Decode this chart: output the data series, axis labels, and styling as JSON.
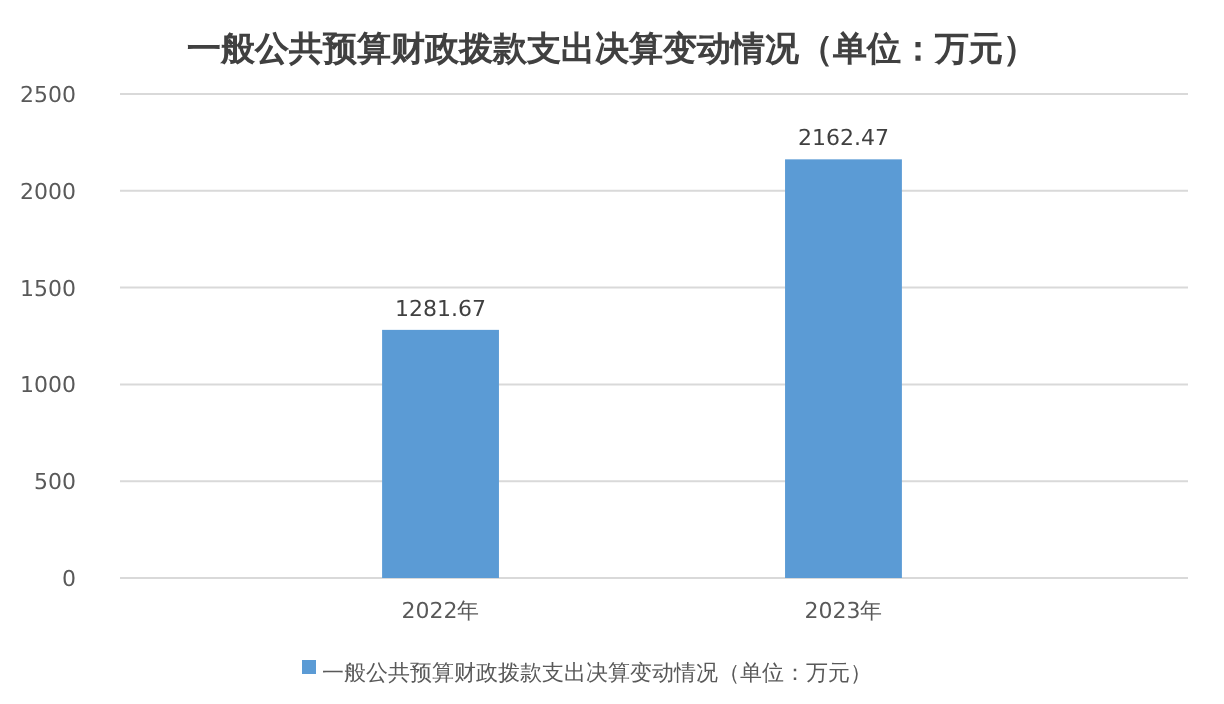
{
  "chart_data": {
    "type": "bar",
    "title": "一般公共预算财政拨款支出决算变动情况（单位：万元）",
    "categories": [
      "2022年",
      "2023年"
    ],
    "series": [
      {
        "name": "一般公共预算财政拨款支出决算变动情况（单位：万元）",
        "color": "#5b9bd5",
        "values": [
          1281.67,
          2162.47
        ]
      }
    ],
    "ylim": [
      0,
      2500
    ],
    "yticks": [
      0,
      500,
      1000,
      1500,
      2000,
      2500
    ],
    "grid": "y",
    "legend": "bottom",
    "data_labels": true
  }
}
